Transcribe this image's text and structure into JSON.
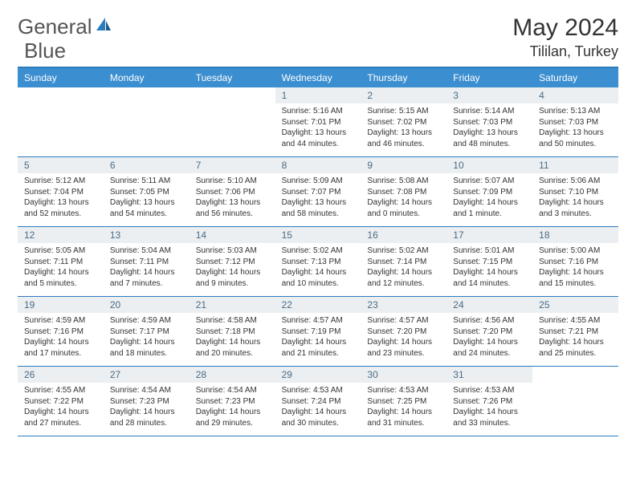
{
  "logo": {
    "text1": "General",
    "text2": "Blue",
    "accent": "#2b7bbf"
  },
  "title": "May 2024",
  "location": "Tililan, Turkey",
  "headers": [
    "Sunday",
    "Monday",
    "Tuesday",
    "Wednesday",
    "Thursday",
    "Friday",
    "Saturday"
  ],
  "header_bg": "#3b8ed0",
  "border_color": "#2b7bbf",
  "daynum_bg": "#eceff1",
  "daynum_color": "#4a6b85",
  "weeks": [
    [
      {
        "n": "",
        "sr": "",
        "ss": "",
        "dl": ""
      },
      {
        "n": "",
        "sr": "",
        "ss": "",
        "dl": ""
      },
      {
        "n": "",
        "sr": "",
        "ss": "",
        "dl": ""
      },
      {
        "n": "1",
        "sr": "Sunrise: 5:16 AM",
        "ss": "Sunset: 7:01 PM",
        "dl": "Daylight: 13 hours and 44 minutes."
      },
      {
        "n": "2",
        "sr": "Sunrise: 5:15 AM",
        "ss": "Sunset: 7:02 PM",
        "dl": "Daylight: 13 hours and 46 minutes."
      },
      {
        "n": "3",
        "sr": "Sunrise: 5:14 AM",
        "ss": "Sunset: 7:03 PM",
        "dl": "Daylight: 13 hours and 48 minutes."
      },
      {
        "n": "4",
        "sr": "Sunrise: 5:13 AM",
        "ss": "Sunset: 7:03 PM",
        "dl": "Daylight: 13 hours and 50 minutes."
      }
    ],
    [
      {
        "n": "5",
        "sr": "Sunrise: 5:12 AM",
        "ss": "Sunset: 7:04 PM",
        "dl": "Daylight: 13 hours and 52 minutes."
      },
      {
        "n": "6",
        "sr": "Sunrise: 5:11 AM",
        "ss": "Sunset: 7:05 PM",
        "dl": "Daylight: 13 hours and 54 minutes."
      },
      {
        "n": "7",
        "sr": "Sunrise: 5:10 AM",
        "ss": "Sunset: 7:06 PM",
        "dl": "Daylight: 13 hours and 56 minutes."
      },
      {
        "n": "8",
        "sr": "Sunrise: 5:09 AM",
        "ss": "Sunset: 7:07 PM",
        "dl": "Daylight: 13 hours and 58 minutes."
      },
      {
        "n": "9",
        "sr": "Sunrise: 5:08 AM",
        "ss": "Sunset: 7:08 PM",
        "dl": "Daylight: 14 hours and 0 minutes."
      },
      {
        "n": "10",
        "sr": "Sunrise: 5:07 AM",
        "ss": "Sunset: 7:09 PM",
        "dl": "Daylight: 14 hours and 1 minute."
      },
      {
        "n": "11",
        "sr": "Sunrise: 5:06 AM",
        "ss": "Sunset: 7:10 PM",
        "dl": "Daylight: 14 hours and 3 minutes."
      }
    ],
    [
      {
        "n": "12",
        "sr": "Sunrise: 5:05 AM",
        "ss": "Sunset: 7:11 PM",
        "dl": "Daylight: 14 hours and 5 minutes."
      },
      {
        "n": "13",
        "sr": "Sunrise: 5:04 AM",
        "ss": "Sunset: 7:11 PM",
        "dl": "Daylight: 14 hours and 7 minutes."
      },
      {
        "n": "14",
        "sr": "Sunrise: 5:03 AM",
        "ss": "Sunset: 7:12 PM",
        "dl": "Daylight: 14 hours and 9 minutes."
      },
      {
        "n": "15",
        "sr": "Sunrise: 5:02 AM",
        "ss": "Sunset: 7:13 PM",
        "dl": "Daylight: 14 hours and 10 minutes."
      },
      {
        "n": "16",
        "sr": "Sunrise: 5:02 AM",
        "ss": "Sunset: 7:14 PM",
        "dl": "Daylight: 14 hours and 12 minutes."
      },
      {
        "n": "17",
        "sr": "Sunrise: 5:01 AM",
        "ss": "Sunset: 7:15 PM",
        "dl": "Daylight: 14 hours and 14 minutes."
      },
      {
        "n": "18",
        "sr": "Sunrise: 5:00 AM",
        "ss": "Sunset: 7:16 PM",
        "dl": "Daylight: 14 hours and 15 minutes."
      }
    ],
    [
      {
        "n": "19",
        "sr": "Sunrise: 4:59 AM",
        "ss": "Sunset: 7:16 PM",
        "dl": "Daylight: 14 hours and 17 minutes."
      },
      {
        "n": "20",
        "sr": "Sunrise: 4:59 AM",
        "ss": "Sunset: 7:17 PM",
        "dl": "Daylight: 14 hours and 18 minutes."
      },
      {
        "n": "21",
        "sr": "Sunrise: 4:58 AM",
        "ss": "Sunset: 7:18 PM",
        "dl": "Daylight: 14 hours and 20 minutes."
      },
      {
        "n": "22",
        "sr": "Sunrise: 4:57 AM",
        "ss": "Sunset: 7:19 PM",
        "dl": "Daylight: 14 hours and 21 minutes."
      },
      {
        "n": "23",
        "sr": "Sunrise: 4:57 AM",
        "ss": "Sunset: 7:20 PM",
        "dl": "Daylight: 14 hours and 23 minutes."
      },
      {
        "n": "24",
        "sr": "Sunrise: 4:56 AM",
        "ss": "Sunset: 7:20 PM",
        "dl": "Daylight: 14 hours and 24 minutes."
      },
      {
        "n": "25",
        "sr": "Sunrise: 4:55 AM",
        "ss": "Sunset: 7:21 PM",
        "dl": "Daylight: 14 hours and 25 minutes."
      }
    ],
    [
      {
        "n": "26",
        "sr": "Sunrise: 4:55 AM",
        "ss": "Sunset: 7:22 PM",
        "dl": "Daylight: 14 hours and 27 minutes."
      },
      {
        "n": "27",
        "sr": "Sunrise: 4:54 AM",
        "ss": "Sunset: 7:23 PM",
        "dl": "Daylight: 14 hours and 28 minutes."
      },
      {
        "n": "28",
        "sr": "Sunrise: 4:54 AM",
        "ss": "Sunset: 7:23 PM",
        "dl": "Daylight: 14 hours and 29 minutes."
      },
      {
        "n": "29",
        "sr": "Sunrise: 4:53 AM",
        "ss": "Sunset: 7:24 PM",
        "dl": "Daylight: 14 hours and 30 minutes."
      },
      {
        "n": "30",
        "sr": "Sunrise: 4:53 AM",
        "ss": "Sunset: 7:25 PM",
        "dl": "Daylight: 14 hours and 31 minutes."
      },
      {
        "n": "31",
        "sr": "Sunrise: 4:53 AM",
        "ss": "Sunset: 7:26 PM",
        "dl": "Daylight: 14 hours and 33 minutes."
      },
      {
        "n": "",
        "sr": "",
        "ss": "",
        "dl": ""
      }
    ]
  ]
}
